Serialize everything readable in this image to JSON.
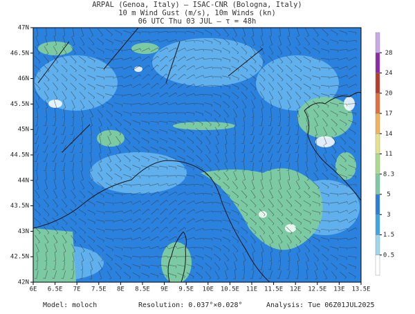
{
  "header": {
    "lines": [
      "ARPAL (Genoa, Italy)  –  ISAC-CNR (Bologna, Italy)",
      "10 m Wind Gust (m/s), 10m Winds (kn)",
      "06 UTC Thu 03 JUL  –  τ = 48h"
    ]
  },
  "map": {
    "lat_ticks": [
      {
        "value": 47,
        "label": "47N"
      },
      {
        "value": 46.5,
        "label": "46.5N"
      },
      {
        "value": 46,
        "label": "46N"
      },
      {
        "value": 45.5,
        "label": "45.5N"
      },
      {
        "value": 45,
        "label": "45N"
      },
      {
        "value": 44.5,
        "label": "44.5N"
      },
      {
        "value": 44,
        "label": "44N"
      },
      {
        "value": 43.5,
        "label": "43.5N"
      },
      {
        "value": 43,
        "label": "43N"
      },
      {
        "value": 42.5,
        "label": "42.5N"
      },
      {
        "value": 42,
        "label": "42N"
      }
    ],
    "lon_ticks": [
      {
        "value": 6,
        "label": "6E"
      },
      {
        "value": 6.5,
        "label": "6.5E"
      },
      {
        "value": 7,
        "label": "7E"
      },
      {
        "value": 7.5,
        "label": "7.5E"
      },
      {
        "value": 8,
        "label": "8E"
      },
      {
        "value": 8.5,
        "label": "8.5E"
      },
      {
        "value": 9,
        "label": "9E"
      },
      {
        "value": 9.5,
        "label": "9.5E"
      },
      {
        "value": 10,
        "label": "10E"
      },
      {
        "value": 10.5,
        "label": "10.5E"
      },
      {
        "value": 11,
        "label": "11E"
      },
      {
        "value": 11.5,
        "label": "11.5E"
      },
      {
        "value": 12,
        "label": "12E"
      },
      {
        "value": 12.5,
        "label": "12.5E"
      },
      {
        "value": 13,
        "label": "13E"
      },
      {
        "value": 13.5,
        "label": "13.5E"
      }
    ],
    "lat_range": [
      42,
      47
    ],
    "lon_range": [
      6,
      13.5
    ]
  },
  "colorbar": {
    "levels": [
      0.5,
      1.5,
      3,
      5,
      8.3,
      11,
      14,
      17,
      20,
      24,
      28
    ],
    "colors": [
      "#ffffff",
      "#9fd6ee",
      "#3fa6e6",
      "#2a7fdc",
      "#7ccaa4",
      "#a9dc8c",
      "#e6e28a",
      "#f2b45a",
      "#e0703c",
      "#b83c2c",
      "#8a2aa8",
      "#c8a8e8"
    ]
  },
  "footer": {
    "model": "Model: moloch",
    "resolution": "Resolution: 0.037°×0.028°",
    "analysis": "Analysis: Tue 06Z01JUL2025"
  }
}
